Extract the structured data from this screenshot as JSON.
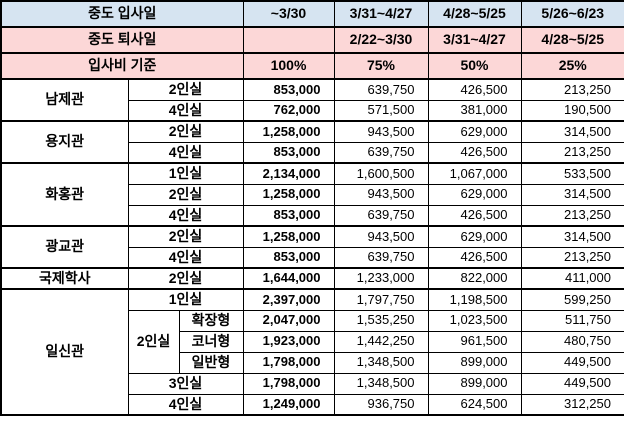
{
  "colors": {
    "header_blue": "#d6e4f1",
    "header_pink": "#fcd7d7",
    "border": "#000000"
  },
  "table": {
    "header_rows": [
      {
        "label": "중도 입사일",
        "cells": [
          "~3/30",
          "3/31~4/27",
          "4/28~5/25",
          "5/26~6/23"
        ]
      },
      {
        "label": "중도 퇴사일",
        "cells": [
          "",
          "2/22~3/30",
          "3/31~4/27",
          "4/28~5/25"
        ]
      },
      {
        "label": "입사비 기준",
        "cells": [
          "100%",
          "75%",
          "50%",
          "25%"
        ]
      }
    ],
    "groups": [
      {
        "building": "남제관",
        "rows": [
          {
            "room": "2인실",
            "prices": [
              "853,000",
              "639,750",
              "426,500",
              "213,250"
            ]
          },
          {
            "room": "4인실",
            "prices": [
              "762,000",
              "571,500",
              "381,000",
              "190,500"
            ]
          }
        ]
      },
      {
        "building": "용지관",
        "rows": [
          {
            "room": "2인실",
            "prices": [
              "1,258,000",
              "943,500",
              "629,000",
              "314,500"
            ]
          },
          {
            "room": "4인실",
            "prices": [
              "853,000",
              "639,750",
              "426,500",
              "213,250"
            ]
          }
        ]
      },
      {
        "building": "화홍관",
        "rows": [
          {
            "room": "1인실",
            "prices": [
              "2,134,000",
              "1,600,500",
              "1,067,000",
              "533,500"
            ]
          },
          {
            "room": "2인실",
            "prices": [
              "1,258,000",
              "943,500",
              "629,000",
              "314,500"
            ]
          },
          {
            "room": "4인실",
            "prices": [
              "853,000",
              "639,750",
              "426,500",
              "213,250"
            ]
          }
        ]
      },
      {
        "building": "광교관",
        "rows": [
          {
            "room": "2인실",
            "prices": [
              "1,258,000",
              "943,500",
              "629,000",
              "314,500"
            ]
          },
          {
            "room": "4인실",
            "prices": [
              "853,000",
              "639,750",
              "426,500",
              "213,250"
            ]
          }
        ]
      },
      {
        "building": "국제학사",
        "rows": [
          {
            "room": "2인실",
            "prices": [
              "1,644,000",
              "1,233,000",
              "822,000",
              "411,000"
            ]
          }
        ]
      },
      {
        "building": "일신관",
        "rows": [
          {
            "room": "1인실",
            "prices": [
              "2,397,000",
              "1,797,750",
              "1,198,500",
              "599,250"
            ]
          },
          {
            "room": "2인실",
            "room_rowspan": 3,
            "sub": "확장형",
            "prices": [
              "2,047,000",
              "1,535,250",
              "1,023,500",
              "511,750"
            ]
          },
          {
            "sub": "코너형",
            "prices": [
              "1,923,000",
              "1,442,250",
              "961,500",
              "480,750"
            ]
          },
          {
            "sub": "일반형",
            "prices": [
              "1,798,000",
              "1,348,500",
              "899,000",
              "449,500"
            ]
          },
          {
            "room": "3인실",
            "prices": [
              "1,798,000",
              "1,348,500",
              "899,000",
              "449,500"
            ]
          },
          {
            "room": "4인실",
            "prices": [
              "1,249,000",
              "936,750",
              "624,500",
              "312,250"
            ]
          }
        ]
      }
    ]
  }
}
